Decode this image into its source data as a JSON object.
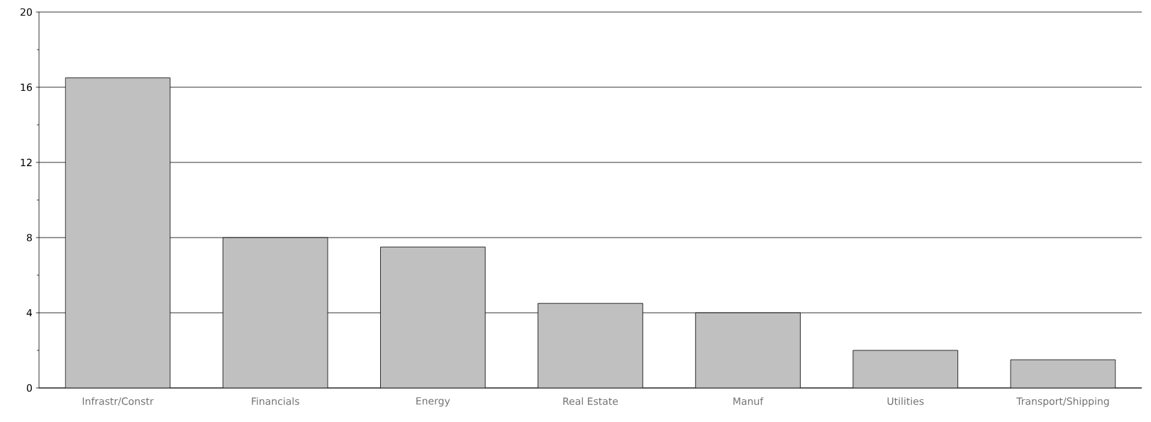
{
  "chart_data": {
    "type": "bar",
    "categories": [
      "Infrastr/Constr",
      "Financials",
      "Energy",
      "Real Estate",
      "Manuf",
      "Utilities",
      "Transport/Shipping"
    ],
    "values": [
      16.5,
      8,
      7.5,
      4.5,
      4,
      2,
      1.5
    ],
    "color": "#c0c0c0",
    "ylim": [
      0,
      20
    ],
    "yticks": [
      0,
      4,
      8,
      12,
      16,
      20
    ],
    "grid": "y"
  }
}
